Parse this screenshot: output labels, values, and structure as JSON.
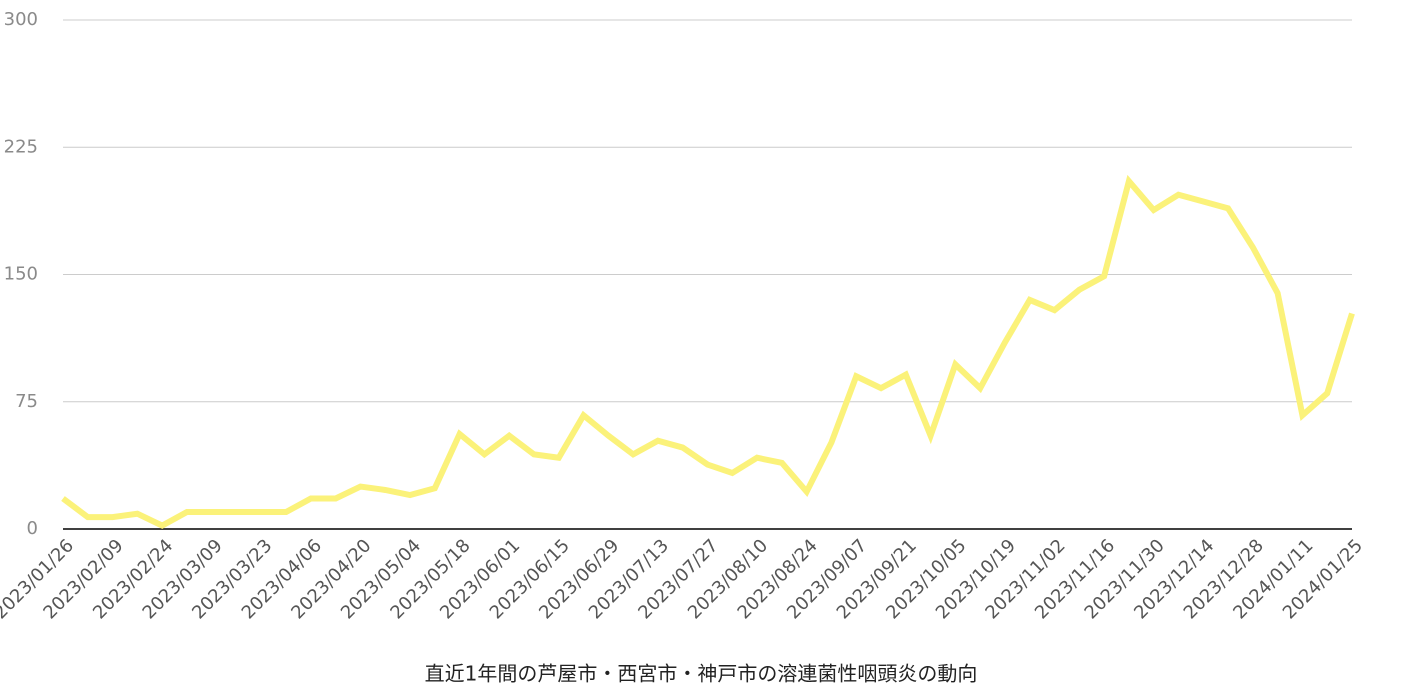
{
  "chart_data": {
    "type": "line",
    "title": "直近1年間の芦屋市・西宮市・神戸市の溶連菌性咽頭炎の動向",
    "categories": [
      "2023/01/26",
      null,
      "2023/02/09",
      null,
      "2023/02/24",
      null,
      "2023/03/09",
      null,
      "2023/03/23",
      null,
      "2023/04/06",
      null,
      "2023/04/20",
      null,
      "2023/05/04",
      null,
      "2023/05/18",
      null,
      "2023/06/01",
      null,
      "2023/06/15",
      null,
      "2023/06/29",
      null,
      "2023/07/13",
      null,
      "2023/07/27",
      null,
      "2023/08/10",
      null,
      "2023/08/24",
      null,
      "2023/09/07",
      null,
      "2023/09/21",
      null,
      "2023/10/05",
      null,
      "2023/10/19",
      null,
      "2023/11/02",
      null,
      "2023/11/16",
      null,
      "2023/11/30",
      null,
      "2023/12/14",
      null,
      "2023/12/28",
      null,
      "2024/01/11",
      null,
      "2024/01/25"
    ],
    "values": [
      18,
      7,
      7,
      9,
      2,
      10,
      10,
      10,
      10,
      10,
      18,
      18,
      25,
      23,
      20,
      24,
      56,
      44,
      55,
      44,
      42,
      67,
      55,
      44,
      52,
      48,
      38,
      33,
      42,
      39,
      22,
      51,
      90,
      83,
      91,
      55,
      97,
      83,
      110,
      135,
      129,
      141,
      149,
      205,
      188,
      197,
      193,
      189,
      166,
      139,
      67,
      80,
      127
    ],
    "color": "#fbf27a",
    "ylim": [
      0,
      300
    ],
    "yticks": [
      0,
      75,
      150,
      225,
      300
    ],
    "grid": true
  }
}
